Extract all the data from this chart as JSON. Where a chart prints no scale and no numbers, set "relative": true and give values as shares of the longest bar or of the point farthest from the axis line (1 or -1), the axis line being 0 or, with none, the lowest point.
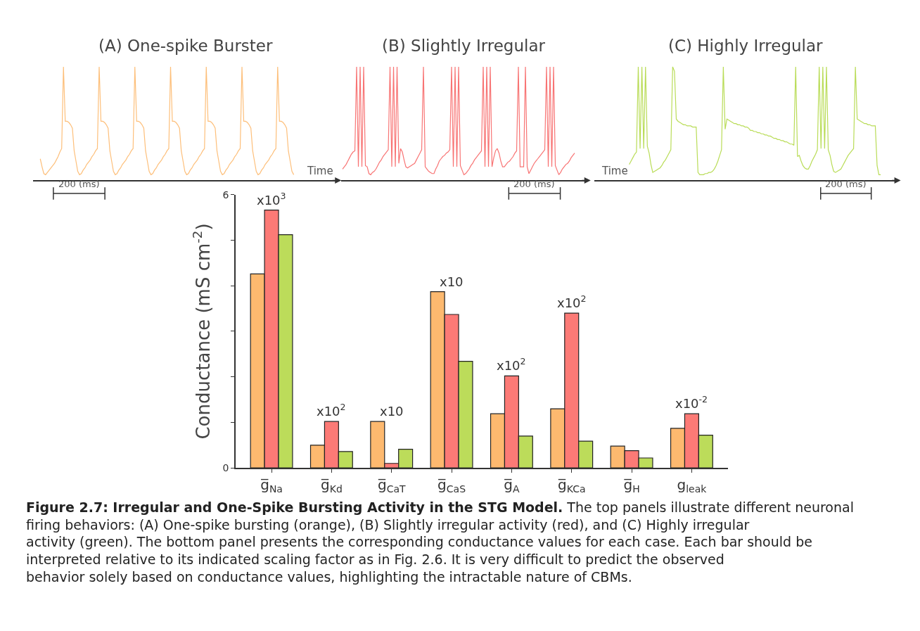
{
  "chart_data": [
    {
      "type": "line",
      "title": "(A) One-spike Burster",
      "xlabel": "Time",
      "relative": true,
      "marker": "none",
      "annotations": [
        "200 (ms)"
      ],
      "categories": [
        null,
        null,
        null,
        null,
        null,
        null,
        null,
        null,
        null,
        null,
        null,
        null,
        null,
        null,
        null,
        null,
        null,
        null,
        null,
        null,
        null,
        null,
        null,
        null,
        null,
        null,
        null,
        null,
        null,
        null,
        null,
        null,
        null,
        null,
        null,
        null,
        null,
        null,
        null,
        null,
        null,
        null,
        null,
        null,
        null,
        null,
        null,
        null,
        null,
        null,
        null,
        null,
        null,
        null,
        null,
        null,
        null,
        null,
        null,
        null,
        null,
        null,
        null,
        null,
        null,
        null,
        null,
        null,
        null,
        null,
        null,
        null,
        null,
        null,
        null,
        null,
        null,
        null,
        null,
        null,
        null,
        null,
        null,
        null,
        null,
        null,
        null,
        null,
        null,
        null,
        null,
        null,
        null,
        null,
        null,
        null,
        null,
        null,
        null,
        null,
        null,
        null,
        null,
        null,
        null,
        null,
        null,
        null,
        null,
        null,
        null,
        null,
        null,
        null,
        null,
        null,
        null,
        null,
        null,
        null,
        null,
        null,
        null,
        null,
        null,
        null,
        null,
        null,
        null,
        null,
        null,
        null,
        null,
        null,
        null,
        null,
        null,
        null,
        null,
        null,
        null,
        null,
        null
      ],
      "series": [
        {
          "color": "#fdbf7a",
          "values": [
            0.19,
            0.12,
            0.06,
            0.05,
            0.07,
            0.09,
            0.11,
            0.13,
            0.15,
            0.18,
            0.21,
            0.25,
            0.28,
            1,
            0.52,
            0.52,
            0.51,
            0.49,
            0.46,
            0.26,
            0.17,
            0.08,
            0.05,
            0.06,
            0.09,
            0.11,
            0.14,
            0.16,
            0.18,
            0.21,
            0.23,
            0.26,
            0.28,
            1,
            0.52,
            0.52,
            0.51,
            0.49,
            0.46,
            0.26,
            0.17,
            0.08,
            0.05,
            0.06,
            0.09,
            0.11,
            0.14,
            0.16,
            0.18,
            0.21,
            0.23,
            0.26,
            0.28,
            1,
            0.52,
            0.52,
            0.51,
            0.49,
            0.46,
            0.26,
            0.17,
            0.08,
            0.05,
            0.06,
            0.09,
            0.11,
            0.14,
            0.16,
            0.18,
            0.21,
            0.23,
            0.26,
            0.28,
            1,
            0.52,
            0.52,
            0.51,
            0.49,
            0.46,
            0.26,
            0.17,
            0.08,
            0.05,
            0.06,
            0.09,
            0.11,
            0.14,
            0.16,
            0.18,
            0.21,
            0.23,
            0.26,
            0.28,
            1,
            0.52,
            0.52,
            0.51,
            0.49,
            0.46,
            0.26,
            0.17,
            0.08,
            0.05,
            0.06,
            0.09,
            0.11,
            0.14,
            0.16,
            0.18,
            0.21,
            0.23,
            0.26,
            0.28,
            1,
            0.52,
            0.52,
            0.51,
            0.49,
            0.46,
            0.26,
            0.17,
            0.08,
            0.05,
            0.06,
            0.09,
            0.11,
            0.14,
            0.16,
            0.18,
            0.21,
            0.23,
            0.26,
            0.28,
            1,
            0.52,
            0.52,
            0.51,
            0.49,
            0.46,
            0.26,
            0.17,
            0.08,
            0.05
          ]
        }
      ]
    },
    {
      "type": "line",
      "title": "(B) Slightly Irregular",
      "relative": true,
      "marker": "none",
      "annotations": [
        "200 (ms)"
      ],
      "categories": [
        null,
        null,
        null,
        null,
        null,
        null,
        null,
        null,
        null,
        null,
        null,
        null,
        null,
        null,
        null,
        null,
        null,
        null,
        null,
        null,
        null,
        null,
        null,
        null,
        null,
        null,
        null,
        null,
        null,
        null,
        null,
        null,
        null,
        null,
        null,
        null,
        null,
        null,
        null,
        null,
        null,
        null,
        null,
        null,
        null,
        null,
        null,
        null,
        null,
        null,
        null,
        null,
        null,
        null,
        null,
        null,
        null,
        null,
        null,
        null,
        null,
        null,
        null,
        null,
        null,
        null,
        null,
        null,
        null,
        null,
        null,
        null,
        null,
        null,
        null,
        null,
        null,
        null,
        null,
        null,
        null,
        null,
        null,
        null,
        null,
        null,
        null,
        null,
        null,
        null,
        null,
        null,
        null,
        null,
        null,
        null,
        null,
        null,
        null,
        null,
        null,
        null,
        null,
        null,
        null,
        null,
        null,
        null,
        null,
        null,
        null,
        null,
        null,
        null,
        null,
        null,
        null,
        null,
        null,
        null,
        null,
        null,
        null,
        null,
        null,
        null,
        null,
        null,
        null,
        null,
        null,
        null,
        null
      ],
      "series": [
        {
          "color": "#f87474",
          "values": [
            0.1,
            0.12,
            0.14,
            0.17,
            0.2,
            0.23,
            0.25,
            0.26,
            1,
            0.12,
            1,
            0.12,
            1,
            0.13,
            0.12,
            0.06,
            0.05,
            0.07,
            0.08,
            0.1,
            0.13,
            0.16,
            0.18,
            0.21,
            0.23,
            0.25,
            0.27,
            1,
            0.12,
            1,
            0.12,
            1,
            0.15,
            0.28,
            0.25,
            0.18,
            0.12,
            0.11,
            0.12,
            0.13,
            0.14,
            0.15,
            0.18,
            0.21,
            0.24,
            0.27,
            1,
            0.12,
            0.1,
            0.08,
            0.07,
            0.06,
            0.06,
            0.1,
            0.13,
            0.17,
            0.19,
            0.21,
            0.22,
            0.24,
            0.25,
            0.27,
            1,
            0.12,
            1,
            0.12,
            1,
            0.13,
            0.09,
            0.05,
            0.06,
            0.08,
            0.1,
            0.13,
            0.15,
            0.18,
            0.2,
            0.22,
            0.24,
            0.26,
            1,
            0.12,
            1,
            0.12,
            1,
            0.12,
            0.2,
            0.26,
            0.28,
            0.24,
            0.17,
            0.12,
            0.12,
            0.14,
            0.16,
            0.17,
            0.19,
            0.21,
            0.24,
            0.26,
            1,
            0.12,
            0.12,
            0.12,
            1,
            0.12,
            0.06,
            0.09,
            0.12,
            0.15,
            0.17,
            0.19,
            0.21,
            0.23,
            0.25,
            0.27,
            1,
            0.12,
            1,
            0.12,
            1,
            0.13,
            0.09,
            0.05,
            0.07,
            0.1,
            0.12,
            0.14,
            0.15,
            0.17,
            0.2,
            0.22,
            0.24
          ]
        }
      ]
    },
    {
      "type": "line",
      "title": "(C) Highly Irregular",
      "xlabel": "Time",
      "relative": true,
      "marker": "none",
      "annotations": [
        "200 (ms)"
      ],
      "categories": [
        null,
        null,
        null,
        null,
        null,
        null,
        null,
        null,
        null,
        null,
        null,
        null,
        null,
        null,
        null,
        null,
        null,
        null,
        null,
        null,
        null,
        null,
        null,
        null,
        null,
        null,
        null,
        null,
        null,
        null,
        null,
        null,
        null,
        null,
        null,
        null,
        null,
        null,
        null,
        null,
        null,
        null,
        null,
        null,
        null,
        null,
        null,
        null,
        null,
        null,
        null,
        null,
        null,
        null,
        null,
        null,
        null,
        null,
        null,
        null,
        null,
        null,
        null,
        null,
        null,
        null,
        null,
        null,
        null,
        null,
        null,
        null,
        null,
        null,
        null,
        null,
        null,
        null,
        null,
        null,
        null,
        null,
        null,
        null,
        null,
        null,
        null,
        null,
        null,
        null,
        null,
        null,
        null,
        null,
        null,
        null,
        null,
        null,
        null,
        null,
        null,
        null,
        null,
        null,
        null,
        null,
        null,
        null,
        null,
        null,
        null,
        null,
        null,
        null,
        null,
        null,
        null,
        null,
        null,
        null,
        null,
        null,
        null,
        null,
        null,
        null,
        null,
        null,
        null,
        null,
        null,
        null,
        null,
        null,
        null,
        null,
        null,
        null,
        null,
        null
      ],
      "series": [
        {
          "color": "#b9dc57",
          "values": [
            0.14,
            0.17,
            0.2,
            0.23,
            0.25,
            1,
            0.28,
            1,
            0.28,
            1,
            0.3,
            0.24,
            0.14,
            0.07,
            0.08,
            0.09,
            0.1,
            0.11,
            0.13,
            0.16,
            0.18,
            0.21,
            0.24,
            0.27,
            1,
            0.96,
            0.54,
            0.52,
            0.51,
            0.5,
            0.49,
            0.49,
            0.48,
            0.48,
            0.48,
            0.47,
            0.47,
            0.47,
            0.07,
            0.05,
            0.05,
            0.05,
            0.06,
            0.06,
            0.07,
            0.07,
            0.08,
            0.1,
            0.13,
            0.17,
            0.22,
            0.27,
            1,
            0.45,
            0.54,
            0.53,
            0.52,
            0.51,
            0.5,
            0.5,
            0.49,
            0.49,
            0.48,
            0.48,
            0.47,
            0.47,
            0.46,
            0.44,
            0.44,
            0.43,
            0.43,
            0.42,
            0.42,
            0.41,
            0.41,
            0.4,
            0.4,
            0.39,
            0.39,
            0.38,
            0.37,
            0.37,
            0.36,
            0.36,
            0.35,
            0.35,
            0.34,
            0.34,
            0.33,
            0.32,
            0.32,
            0.31,
            1,
            0.21,
            0.22,
            0.17,
            0.13,
            0.11,
            0.1,
            0.1,
            0.13,
            0.17,
            0.2,
            0.23,
            0.27,
            1,
            0.28,
            1,
            0.28,
            1,
            0.27,
            0.22,
            0.14,
            0.08,
            0.07,
            0.08,
            0.09,
            0.1,
            0.13,
            0.16,
            0.19,
            0.22,
            0.24,
            0.26,
            0.28,
            1,
            0.54,
            0.53,
            0.52,
            0.51,
            0.5,
            0.5,
            0.49,
            0.49,
            0.48,
            0.48,
            0.48,
            0.13,
            0.05,
            0.05
          ]
        }
      ]
    },
    {
      "type": "bar",
      "ylabel": "Conductance (mS cm$^{-2}$)",
      "ylim": [
        0,
        6
      ],
      "yticks": [
        0,
        {
          "value": 1,
          "label": null
        },
        {
          "value": 2,
          "label": null
        },
        {
          "value": 3,
          "label": null
        },
        {
          "value": 4,
          "label": null
        },
        {
          "value": 5,
          "label": null
        },
        6
      ],
      "categories": [
        "g̅$_{Na}$",
        "g̅$_{Kd}$",
        "g̅$_{CaT}$",
        "g̅$_{CaS}$",
        "g̅$_{A}$",
        "g̅$_{KCa}$",
        "g̅$_{H}$",
        "g$_{leak}$"
      ],
      "series": [
        {
          "color": "#fdb96f",
          "values": [
            4.26,
            0.5,
            1.02,
            3.87,
            1.19,
            1.3,
            0.48,
            0.87
          ]
        },
        {
          "color": "#fc7a76",
          "values": [
            5.66,
            1.02,
            0.1,
            3.37,
            2.02,
            3.4,
            0.38,
            1.19
          ]
        },
        {
          "color": "#bcdc5a",
          "values": [
            5.12,
            0.36,
            0.41,
            2.34,
            0.7,
            0.59,
            0.22,
            0.72
          ]
        }
      ],
      "annotations": [
        "x10$^{3}$",
        "x10$^{2}$",
        "x10",
        "x10",
        "x10$^{2}$",
        "x10$^{2}$",
        "x10$^{-2}$",
        "Figure 2.7: Irregular and One-Spike Bursting Activity in the STG Model.",
        "The top panels illustrate different neuronal firing behaviors: (A) One-spike bursting (orange), (B) Slightly irregular activity (red), and (C) Highly irregular activity (green). The bottom panel presents the corresponding conductance values for each case. Each bar should be interpreted relative to its indicated scaling factor as in Fig. 2.6. It is very difficult to predict the observed behavior solely based on conductance values, highlighting the intractable nature of CBMs."
      ]
    }
  ]
}
